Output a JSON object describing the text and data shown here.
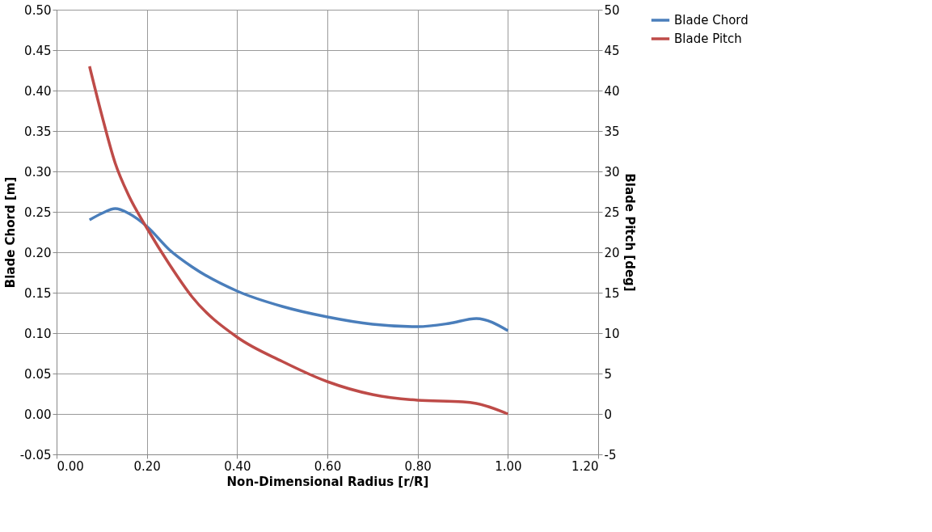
{
  "chart_data": {
    "type": "line",
    "xlabel": "Non-Dimensional Radius [r/R]",
    "ylabel": "Blade Chord [m]",
    "y2label": "Blade Pitch [deg]",
    "xlim": [
      0,
      1.2
    ],
    "xticks": [
      {
        "value": 0,
        "label": "0.00"
      },
      {
        "value": 0.2,
        "label": "0.20"
      },
      {
        "value": 0.4,
        "label": "0.40"
      },
      {
        "value": 0.6,
        "label": "0.60"
      },
      {
        "value": 0.8,
        "label": "0.80"
      },
      {
        "value": 1.0,
        "label": "1.00"
      },
      {
        "value": 1.2,
        "label": "1.20"
      }
    ],
    "ylim": [
      -0.05,
      0.5
    ],
    "yticks": [
      {
        "value": -0.05,
        "label": "-0.05"
      },
      {
        "value": 0,
        "label": "0.00"
      },
      {
        "value": 0.05,
        "label": "0.05"
      },
      {
        "value": 0.1,
        "label": "0.10"
      },
      {
        "value": 0.15,
        "label": "0.15"
      },
      {
        "value": 0.2,
        "label": "0.20"
      },
      {
        "value": 0.25,
        "label": "0.25"
      },
      {
        "value": 0.3,
        "label": "0.30"
      },
      {
        "value": 0.35,
        "label": "0.35"
      },
      {
        "value": 0.4,
        "label": "0.40"
      },
      {
        "value": 0.45,
        "label": "0.45"
      },
      {
        "value": 0.5,
        "label": "0.50"
      }
    ],
    "y2lim": [
      -5,
      50
    ],
    "y2ticks": [
      -5,
      0,
      5,
      10,
      15,
      20,
      25,
      30,
      35,
      40,
      45,
      50
    ],
    "grid": true,
    "legend": "right",
    "line_style": "solid",
    "series": [
      {
        "name": "Blade Chord",
        "color": "#4a7ebb",
        "x": [
          0.073,
          0.1,
          0.13,
          0.16,
          0.2,
          0.25,
          0.3,
          0.4,
          0.5,
          0.6,
          0.7,
          0.8,
          0.87,
          0.93,
          1.0
        ],
        "values": [
          0.24,
          0.248,
          0.254,
          0.248,
          0.232,
          0.203,
          0.182,
          0.152,
          0.133,
          0.12,
          0.111,
          0.108,
          0.112,
          0.118,
          0.103
        ]
      },
      {
        "name": "Blade Pitch",
        "color": "#be4b48",
        "axis": "y2",
        "x": [
          0.073,
          0.1,
          0.13,
          0.16,
          0.2,
          0.25,
          0.3,
          0.4,
          0.5,
          0.6,
          0.7,
          0.8,
          0.9,
          0.93,
          1.0
        ],
        "values": [
          43,
          37,
          31,
          27,
          23,
          18.5,
          14.5,
          9.5,
          6.5,
          4,
          2.4,
          1.7,
          1.5,
          1.3,
          0
        ]
      }
    ]
  }
}
